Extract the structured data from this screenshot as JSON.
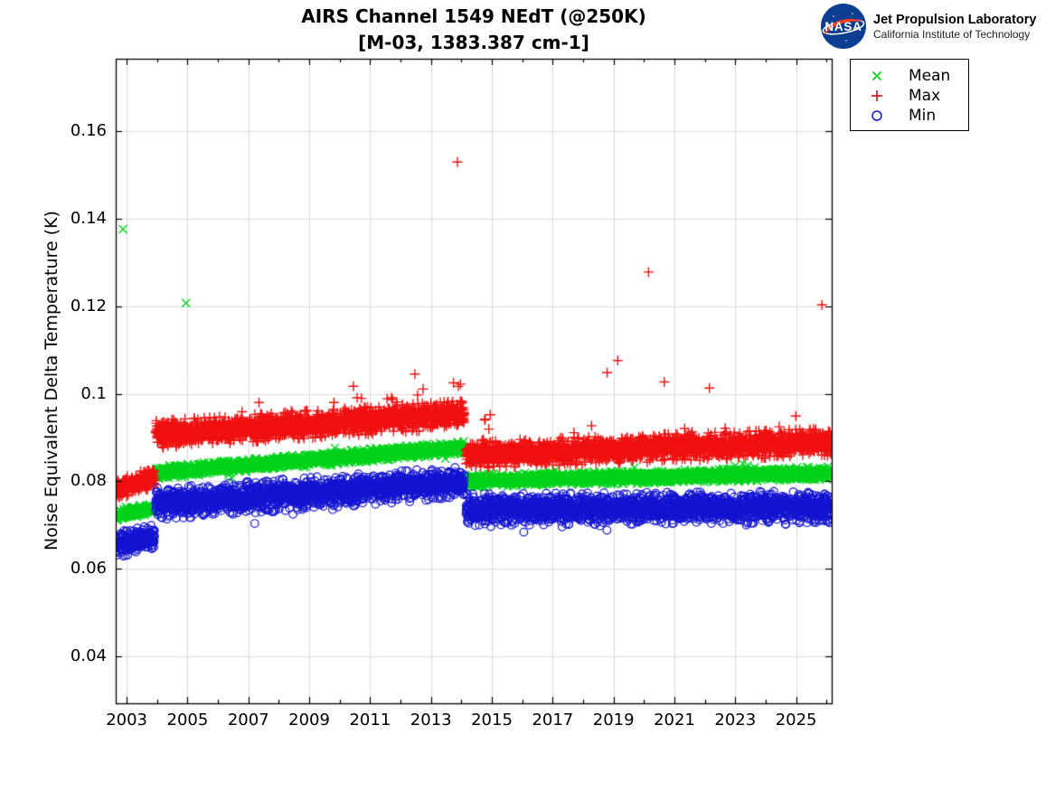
{
  "logo": {
    "nasa_text": "NASA",
    "line1": "Jet Propulsion Laboratory",
    "line2": "California Institute of Technology",
    "colors": {
      "nasa_blue": "#0b3d91",
      "nasa_red": "#fc3d21"
    }
  },
  "chart_data": {
    "type": "scatter",
    "title_line1": "AIRS Channel 1549 NEdT (@250K)",
    "title_line2": "[M-03, 1383.387 cm-1]",
    "xlabel": "",
    "ylabel": "Noise Equivalent Delta Temperature (K)",
    "xlim": [
      2002.64,
      2026.17
    ],
    "ylim": [
      0.0293,
      0.1765
    ],
    "xtick_values": [
      2003,
      2005,
      2007,
      2009,
      2011,
      2013,
      2015,
      2017,
      2019,
      2021,
      2023,
      2025
    ],
    "xtick_labels": [
      "2003",
      "2005",
      "2007",
      "2009",
      "2011",
      "2013",
      "2015",
      "2017",
      "2019",
      "2021",
      "2023",
      "2025"
    ],
    "xminor_values": [
      2004,
      2006,
      2008,
      2010,
      2012,
      2014,
      2016,
      2018,
      2020,
      2022,
      2024,
      2026
    ],
    "ytick_values": [
      0.04,
      0.06,
      0.08,
      0.1,
      0.12,
      0.14,
      0.16
    ],
    "ytick_labels": [
      "0.04",
      "0.06",
      "0.08",
      "0.1",
      "0.12",
      "0.14",
      "0.16"
    ],
    "grid": true,
    "grid_color": "#d9d9d9",
    "axis_color": "#000000",
    "legend_position": "outside-top-right",
    "seed": 42,
    "sample_step_days": 2,
    "series": [
      {
        "name": "Mean",
        "marker": "x",
        "color": "#00d31c",
        "segments": [
          {
            "x0": 2002.64,
            "x1": 2003.92,
            "v0": 0.0722,
            "v1": 0.0738,
            "sigma": 0.0005
          },
          {
            "x0": 2003.95,
            "x1": 2014.1,
            "v0": 0.0819,
            "v1": 0.0878,
            "sigma": 0.0006
          },
          {
            "x0": 2014.15,
            "x1": 2026.17,
            "v0": 0.0801,
            "v1": 0.0819,
            "sigma": 0.0006
          }
        ],
        "spike": {
          "dir": "both",
          "prob": 0.005,
          "min": 0.0008,
          "max": 0.0028
        },
        "outliers": [
          [
            2002.88,
            0.1376
          ],
          [
            2004.95,
            0.1207
          ]
        ]
      },
      {
        "name": "Max",
        "marker": "+",
        "color": "#f01111",
        "segments": [
          {
            "x0": 2002.64,
            "x1": 2003.92,
            "v0": 0.0778,
            "v1": 0.0812,
            "sigma": 0.001
          },
          {
            "x0": 2003.95,
            "x1": 2014.1,
            "v0": 0.0907,
            "v1": 0.0953,
            "sigma": 0.0013
          },
          {
            "x0": 2014.15,
            "x1": 2026.17,
            "v0": 0.086,
            "v1": 0.089,
            "sigma": 0.0013
          }
        ],
        "spike": {
          "dir": "up",
          "prob": 0.012,
          "min": 0.0015,
          "max": 0.006
        },
        "outliers": [
          [
            2013.87,
            0.1529
          ],
          [
            2020.15,
            0.1278
          ],
          [
            2025.85,
            0.1203
          ],
          [
            2019.14,
            0.1076
          ],
          [
            2018.79,
            0.1048
          ],
          [
            2020.67,
            0.1027
          ],
          [
            2022.15,
            0.1013
          ],
          [
            2012.47,
            0.1045
          ],
          [
            2013.74,
            0.1025
          ],
          [
            2013.97,
            0.1022
          ],
          [
            2010.45,
            0.1017
          ],
          [
            2014.78,
            0.0942
          ],
          [
            2014.95,
            0.0952
          ]
        ]
      },
      {
        "name": "Min",
        "marker": "o",
        "color": "#1414d2",
        "segments": [
          {
            "x0": 2002.64,
            "x1": 2003.92,
            "v0": 0.0655,
            "v1": 0.0672,
            "sigma": 0.0012
          },
          {
            "x0": 2003.95,
            "x1": 2014.1,
            "v0": 0.0748,
            "v1": 0.0798,
            "sigma": 0.0015
          },
          {
            "x0": 2014.15,
            "x1": 2026.17,
            "v0": 0.0735,
            "v1": 0.0742,
            "sigma": 0.0015
          }
        ],
        "spike": {
          "dir": "down",
          "prob": 0.012,
          "min": 0.001,
          "max": 0.0045
        },
        "outliers": [
          [
            2016.05,
            0.0684
          ]
        ]
      }
    ]
  }
}
